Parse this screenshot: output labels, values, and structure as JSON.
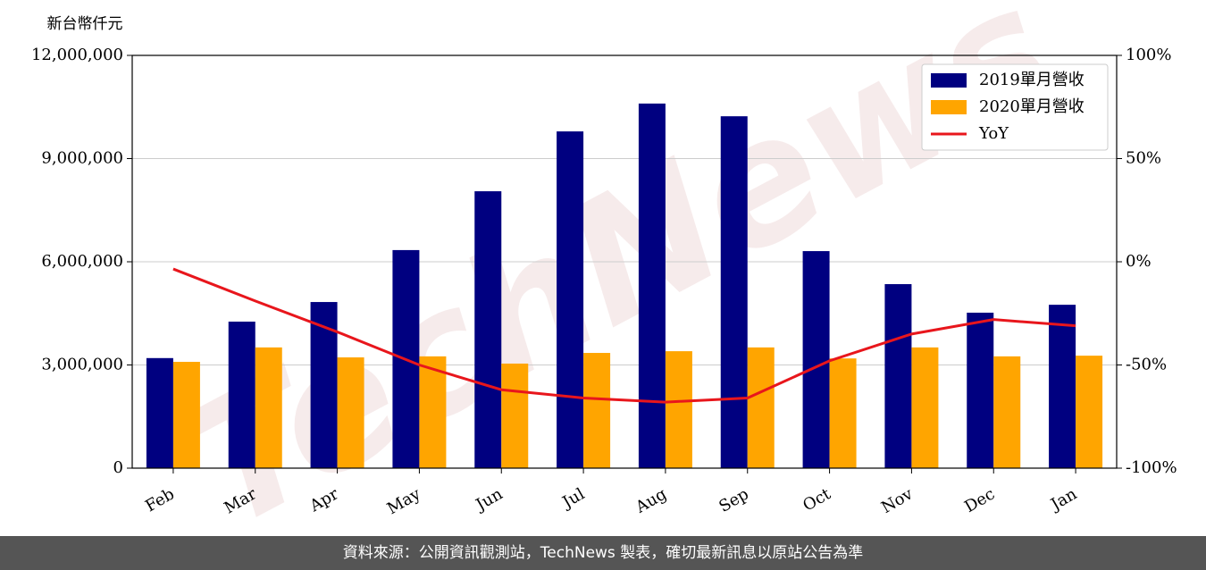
{
  "chart_data": {
    "type": "bar",
    "y_axis_label": "新台幣仟元",
    "watermark": "TechNews",
    "categories": [
      "Feb",
      "Mar",
      "Apr",
      "May",
      "Jun",
      "Jul",
      "Aug",
      "Sep",
      "Oct",
      "Nov",
      "Dec",
      "Jan"
    ],
    "series": [
      {
        "name": "2019單月營收",
        "color": "#000080",
        "values": [
          3200000,
          4260000,
          4830000,
          6340000,
          8050000,
          9790000,
          10600000,
          10230000,
          6310000,
          5350000,
          4520000,
          4750000
        ]
      },
      {
        "name": "2020單月營收",
        "color": "#ffa500",
        "values": [
          3090000,
          3510000,
          3220000,
          3250000,
          3040000,
          3350000,
          3400000,
          3510000,
          3190000,
          3510000,
          3250000,
          3270000
        ]
      },
      {
        "name": "YoY",
        "color": "#e8161c",
        "axis": "y2",
        "values": [
          -3.5,
          -19,
          -34,
          -50,
          -62,
          -66,
          -68,
          -66,
          -48,
          -35,
          -28,
          -31
        ]
      }
    ],
    "ylim": [
      0,
      12000000
    ],
    "yticks": [
      0,
      {
        "value": 3000000,
        "label": "3,000,000"
      },
      {
        "value": 6000000,
        "label": "6,000,000"
      },
      {
        "value": 9000000,
        "label": "9,000,000"
      },
      {
        "value": 12000000,
        "label": "12,000,000"
      }
    ],
    "y2lim": [
      -100,
      100
    ],
    "y2ticks": [
      {
        "value": -100,
        "label": "-100%"
      },
      {
        "value": -50,
        "label": "-50%"
      },
      {
        "value": 0,
        "label": "0%"
      },
      {
        "value": 50,
        "label": "50%"
      },
      {
        "value": 100,
        "label": "100%"
      }
    ],
    "grid": true,
    "legend": "upper-right"
  },
  "footer": "資料來源：公開資訊觀測站，TechNews 製表，確切最新訊息以原站公告為準"
}
